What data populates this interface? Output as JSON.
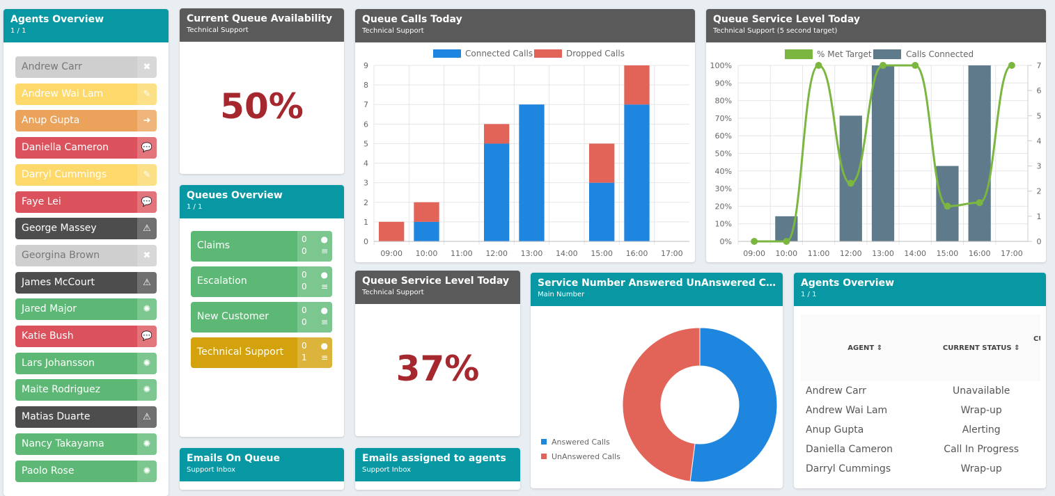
{
  "agents_panel": {
    "title": "Agents Overview",
    "sub": "1 / 1",
    "agents": [
      {
        "name": "Andrew Carr",
        "status": "unavailable",
        "icon": "close-icon",
        "glyph": "✖",
        "bg": "#cfcfcf",
        "fg": "#777"
      },
      {
        "name": "Andrew Wai Lam",
        "status": "wrap-up",
        "icon": "edit-icon",
        "glyph": "✎",
        "bg": "#fcd96a",
        "fg": "#fff"
      },
      {
        "name": "Anup Gupta",
        "status": "alerting",
        "icon": "arrow-right-icon",
        "glyph": "➜",
        "bg": "#eba35b",
        "fg": "#fff"
      },
      {
        "name": "Daniella Cameron",
        "status": "call-in-progress",
        "icon": "chat-icon",
        "glyph": "💬",
        "bg": "#db525c",
        "fg": "#fff"
      },
      {
        "name": "Darryl Cummings",
        "status": "wrap-up",
        "icon": "edit-icon",
        "glyph": "✎",
        "bg": "#fcd96a",
        "fg": "#fff"
      },
      {
        "name": "Faye Lei",
        "status": "call-in-progress",
        "icon": "chat-icon",
        "glyph": "💬",
        "bg": "#db525c",
        "fg": "#fff"
      },
      {
        "name": "George Massey",
        "status": "warning",
        "icon": "warning-icon",
        "glyph": "⚠",
        "bg": "#4d4d4d",
        "fg": "#fff"
      },
      {
        "name": "Georgina Brown",
        "status": "unavailable",
        "icon": "close-icon",
        "glyph": "✖",
        "bg": "#cfcfcf",
        "fg": "#777"
      },
      {
        "name": "James McCourt",
        "status": "warning",
        "icon": "warning-icon",
        "glyph": "⚠",
        "bg": "#4d4d4d",
        "fg": "#fff"
      },
      {
        "name": "Jared Major",
        "status": "available",
        "icon": "spinner-icon",
        "glyph": "✺",
        "bg": "#5cb874",
        "fg": "#fff"
      },
      {
        "name": "Katie Bush",
        "status": "call-in-progress",
        "icon": "chat-icon",
        "glyph": "💬",
        "bg": "#db525c",
        "fg": "#fff"
      },
      {
        "name": "Lars Johansson",
        "status": "available",
        "icon": "spinner-icon",
        "glyph": "✺",
        "bg": "#5cb874",
        "fg": "#fff"
      },
      {
        "name": "Maite Rodriguez",
        "status": "available",
        "icon": "spinner-icon",
        "glyph": "✺",
        "bg": "#5cb874",
        "fg": "#fff"
      },
      {
        "name": "Matias Duarte",
        "status": "warning",
        "icon": "warning-icon",
        "glyph": "⚠",
        "bg": "#4d4d4d",
        "fg": "#fff"
      },
      {
        "name": "Nancy Takayama",
        "status": "available",
        "icon": "spinner-icon",
        "glyph": "✺",
        "bg": "#5cb874",
        "fg": "#fff"
      },
      {
        "name": "Paolo Rose",
        "status": "available",
        "icon": "spinner-icon",
        "glyph": "✺",
        "bg": "#5cb874",
        "fg": "#fff"
      }
    ]
  },
  "availability": {
    "title": "Current Queue Availability",
    "sub": "Technical Support",
    "value": "50%"
  },
  "queues": {
    "title": "Queues Overview",
    "sub": "1 / 1",
    "items": [
      {
        "name": "Claims",
        "calls": "0",
        "waiting": "0",
        "bg": "#5cb874"
      },
      {
        "name": "Escalation",
        "calls": "0",
        "waiting": "0",
        "bg": "#5cb874"
      },
      {
        "name": "New Customer",
        "calls": "0",
        "waiting": "0",
        "bg": "#5cb874"
      },
      {
        "name": "Technical Support",
        "calls": "0",
        "waiting": "1",
        "bg": "#d4a20c"
      }
    ]
  },
  "emails_queue": {
    "title": "Emails On Queue",
    "sub": "Support Inbox"
  },
  "emails_agents": {
    "title": "Emails assigned to agents",
    "sub": "Support Inbox"
  },
  "service_level": {
    "title": "Queue Service Level Today",
    "sub": "Technical Support",
    "value": "37%"
  },
  "calls_today": {
    "title": "Queue Calls Today",
    "sub": "Technical Support"
  },
  "sl_chart": {
    "title": "Queue Service Level Today",
    "sub": "Technical Support (5 second target)"
  },
  "donut_panel": {
    "title": "Service Number Answered UnAnswered Calls F...",
    "sub": "Main Number"
  },
  "table": {
    "title": "Agents Overview",
    "sub": "1 / 1",
    "headers": [
      "AGENT ⇕",
      "CURRENT STATUS ⇕",
      "CU"
    ],
    "rows": [
      [
        "Andrew Carr",
        "Unavailable"
      ],
      [
        "Andrew Wai Lam",
        "Wrap-up"
      ],
      [
        "Anup Gupta",
        "Alerting"
      ],
      [
        "Daniella Cameron",
        "Call In Progress"
      ],
      [
        "Darryl Cummings",
        "Wrap-up"
      ]
    ]
  },
  "chart_data": [
    {
      "type": "bar",
      "stacked": true,
      "categories": [
        "09:00",
        "10:00",
        "11:00",
        "12:00",
        "13:00",
        "14:00",
        "15:00",
        "16:00",
        "17:00"
      ],
      "series": [
        {
          "name": "Connected Calls",
          "values": [
            0,
            1,
            0,
            5,
            7,
            0,
            3,
            7,
            0
          ],
          "color": "#1f86e0"
        },
        {
          "name": "Dropped Calls",
          "values": [
            1,
            1,
            0,
            1,
            0,
            0,
            2,
            2,
            0
          ],
          "color": "#e26357"
        }
      ],
      "ylim": [
        0,
        9
      ],
      "yticks": [
        "0",
        "1",
        "2",
        "3",
        "4",
        "5",
        "6",
        "7",
        "8",
        "9"
      ],
      "grid": true,
      "legend": "top"
    },
    {
      "type": "bar+line",
      "categories": [
        "09:00",
        "10:00",
        "11:00",
        "12:00",
        "13:00",
        "14:00",
        "15:00",
        "16:00",
        "17:00"
      ],
      "series": [
        {
          "name": "% Met Target",
          "type": "line",
          "axis": "left",
          "values": [
            0,
            0,
            100,
            33,
            100,
            100,
            20,
            22,
            100
          ],
          "color": "#7ab640"
        },
        {
          "name": "Calls Connected",
          "type": "bar",
          "axis": "right",
          "values": [
            0,
            1,
            0,
            5,
            7,
            0,
            3,
            7,
            0
          ],
          "color": "#5f7a8a"
        }
      ],
      "ylim_left": [
        0,
        100
      ],
      "yticks_left": [
        "0%",
        "10%",
        "20%",
        "30%",
        "40%",
        "50%",
        "60%",
        "70%",
        "80%",
        "90%",
        "100%"
      ],
      "ylim_right": [
        0,
        7
      ],
      "yticks_right": [
        "0",
        "1",
        "2",
        "3",
        "4",
        "5",
        "6",
        "7"
      ],
      "grid": true,
      "legend": "top"
    },
    {
      "type": "pie",
      "donut": true,
      "categories": [
        "Answered Calls",
        "UnAnswered Calls"
      ],
      "values": [
        52,
        48
      ],
      "colors": [
        "#1f86e0",
        "#e26357"
      ],
      "legend": "left"
    }
  ]
}
